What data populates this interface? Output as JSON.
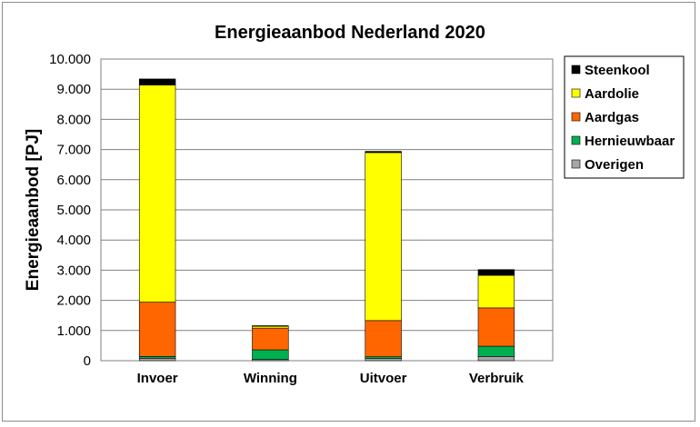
{
  "chart_data": {
    "type": "bar",
    "stacked": true,
    "title": "Energieaanbod Nederland 2020",
    "ylabel": "Energieaanbod  [PJ]",
    "xlabel": "",
    "ylim": [
      0,
      10000
    ],
    "ytick_step": 1000,
    "ytick_labels": [
      "0",
      "1.000",
      "2.000",
      "3.000",
      "4.000",
      "5.000",
      "6.000",
      "7.000",
      "8.000",
      "9.000",
      "10.000"
    ],
    "grid": true,
    "legend_position": "right",
    "categories": [
      "Invoer",
      "Winning",
      "Uitvoer",
      "Verbruik"
    ],
    "series": [
      {
        "name": "Overigen",
        "color": "#a6a6a6",
        "values": [
          80,
          40,
          70,
          140
        ]
      },
      {
        "name": "Hernieuwbaar",
        "color": "#00b050",
        "values": [
          60,
          320,
          60,
          340
        ]
      },
      {
        "name": "Aardgas",
        "color": "#ff6600",
        "values": [
          1800,
          720,
          1200,
          1270
        ]
      },
      {
        "name": "Aardolie",
        "color": "#ffff00",
        "values": [
          7200,
          60,
          5570,
          1080
        ]
      },
      {
        "name": "Steenkool",
        "color": "#000000",
        "values": [
          200,
          20,
          40,
          190
        ]
      }
    ],
    "legend_order": [
      "Steenkool",
      "Aardolie",
      "Aardgas",
      "Hernieuwbaar",
      "Overigen"
    ]
  }
}
